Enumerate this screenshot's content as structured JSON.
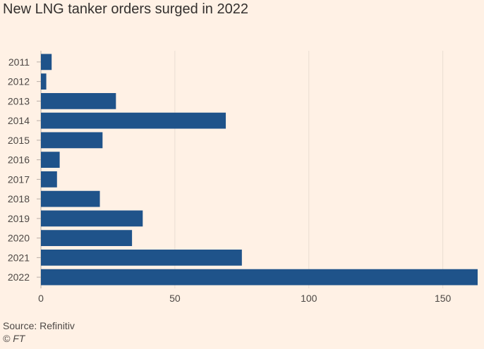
{
  "chart_data": {
    "type": "bar",
    "orientation": "horizontal",
    "title": "New LNG tanker orders surged in 2022",
    "categories": [
      "2011",
      "2012",
      "2013",
      "2014",
      "2015",
      "2016",
      "2017",
      "2018",
      "2019",
      "2020",
      "2021",
      "2022"
    ],
    "values": [
      4,
      2,
      28,
      69,
      23,
      7,
      6,
      22,
      38,
      34,
      75,
      163
    ],
    "xlim": [
      0,
      163
    ],
    "xticks": [
      0,
      50,
      100,
      150
    ],
    "xlabel": "",
    "ylabel": "",
    "grid": true,
    "bar_color": "#1f538a",
    "source": "Source: Refinitiv",
    "credit": "© FT"
  }
}
